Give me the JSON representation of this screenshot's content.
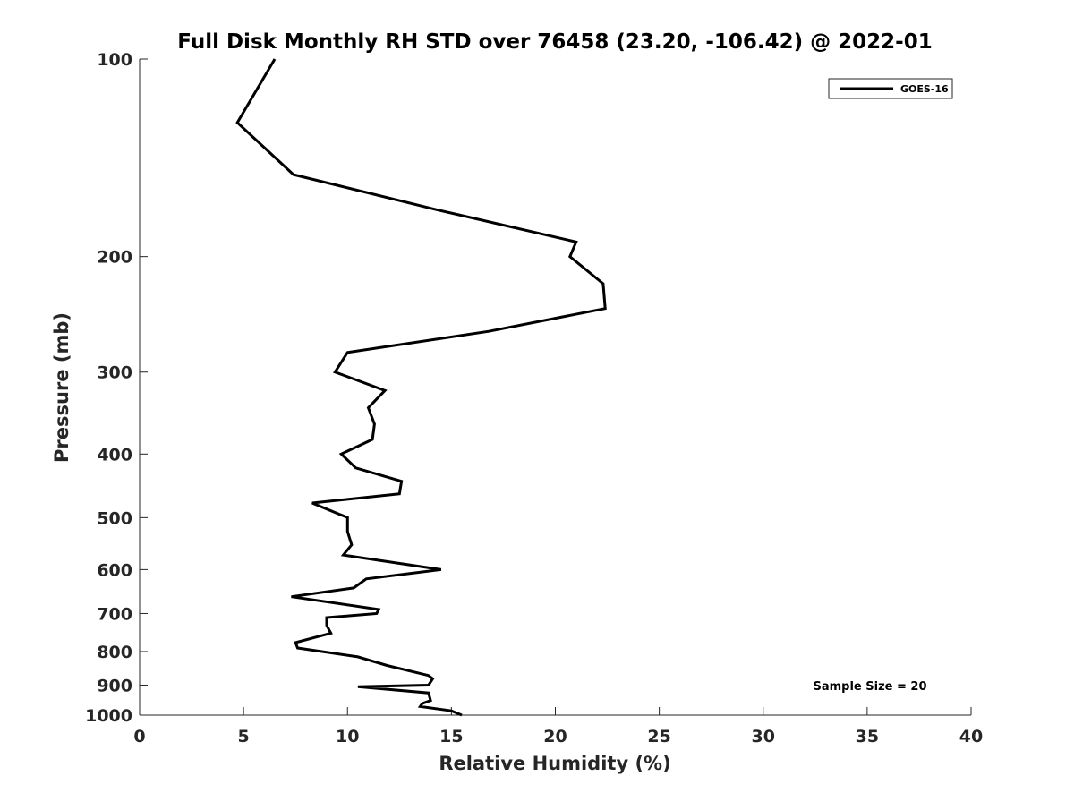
{
  "chart_data": {
    "type": "line",
    "title": "Full Disk Monthly RH STD over 76458 (23.20, -106.42) @ 2022-01",
    "xlabel": "Relative Humidity (%)",
    "ylabel": "Pressure (mb)",
    "xlim": [
      0,
      40
    ],
    "ylim": [
      100,
      1000
    ],
    "y_scale": "log",
    "y_reversed": true,
    "grid": false,
    "legend_position": "top-right",
    "x_ticks": [
      0,
      5,
      10,
      15,
      20,
      25,
      30,
      35,
      40
    ],
    "y_ticks": [
      100,
      200,
      300,
      400,
      500,
      600,
      700,
      800,
      900,
      1000
    ],
    "annotation": "Sample Size = 20",
    "series": [
      {
        "name": "GOES-16",
        "color": "#000000",
        "points": [
          [
            6.5,
            100
          ],
          [
            4.7,
            125
          ],
          [
            7.4,
            150
          ],
          [
            14.4,
            170
          ],
          [
            21.0,
            190
          ],
          [
            20.7,
            200
          ],
          [
            22.3,
            220
          ],
          [
            22.4,
            240
          ],
          [
            16.8,
            260
          ],
          [
            10.0,
            280
          ],
          [
            9.4,
            300
          ],
          [
            11.8,
            320
          ],
          [
            11.0,
            340
          ],
          [
            11.3,
            360
          ],
          [
            11.2,
            380
          ],
          [
            9.7,
            400
          ],
          [
            10.4,
            420
          ],
          [
            12.6,
            440
          ],
          [
            12.5,
            460
          ],
          [
            8.3,
            475
          ],
          [
            10.0,
            500
          ],
          [
            10.0,
            525
          ],
          [
            10.2,
            550
          ],
          [
            9.8,
            570
          ],
          [
            14.5,
            600
          ],
          [
            10.9,
            620
          ],
          [
            10.3,
            640
          ],
          [
            7.3,
            660
          ],
          [
            11.5,
            690
          ],
          [
            11.4,
            700
          ],
          [
            9.0,
            710
          ],
          [
            9.0,
            730
          ],
          [
            9.2,
            750
          ],
          [
            7.5,
            775
          ],
          [
            7.6,
            790
          ],
          [
            10.5,
            815
          ],
          [
            11.9,
            840
          ],
          [
            13.9,
            870
          ],
          [
            14.1,
            880
          ],
          [
            13.9,
            900
          ],
          [
            10.5,
            905
          ],
          [
            13.9,
            925
          ],
          [
            14.0,
            950
          ],
          [
            13.6,
            960
          ],
          [
            13.5,
            970
          ],
          [
            15.0,
            985
          ],
          [
            15.5,
            1000
          ]
        ]
      }
    ]
  }
}
